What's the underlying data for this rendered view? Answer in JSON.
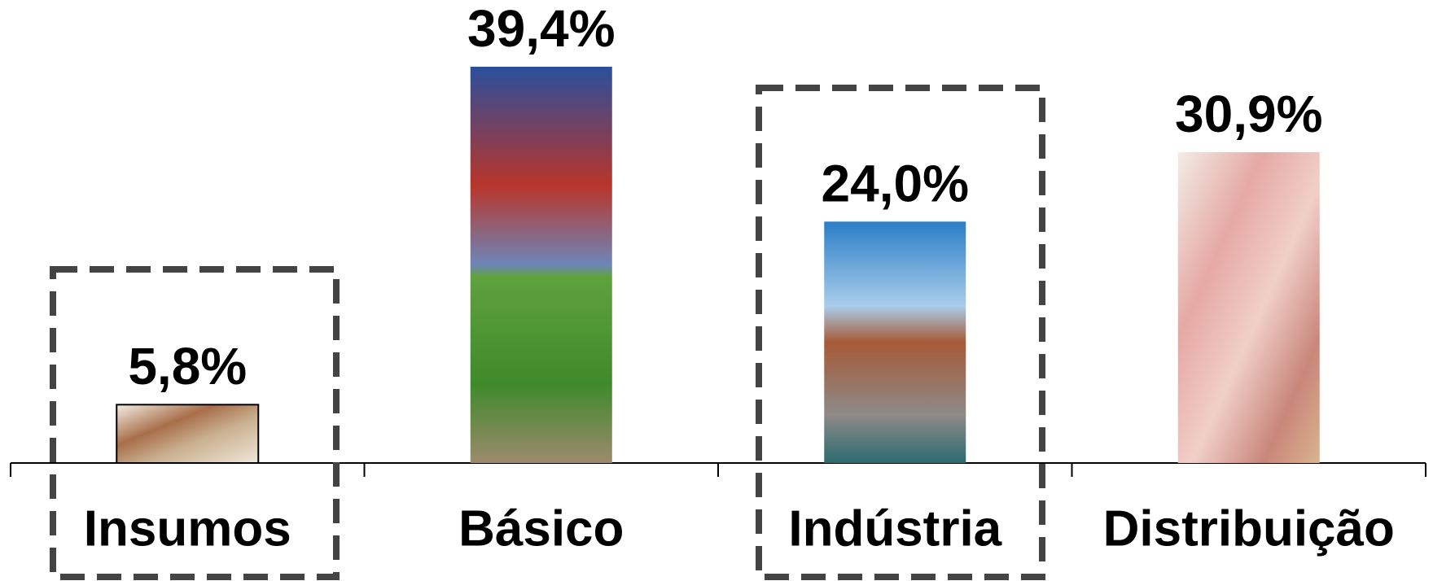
{
  "chart_data": {
    "type": "bar",
    "categories": [
      "Insumos",
      "Básico",
      "Indústria",
      "Distribuição"
    ],
    "values": [
      5.8,
      39.4,
      24.0,
      30.9
    ],
    "value_labels": [
      "5,8%",
      "39,4%",
      "24,0%",
      "30,9%"
    ]
  }
}
